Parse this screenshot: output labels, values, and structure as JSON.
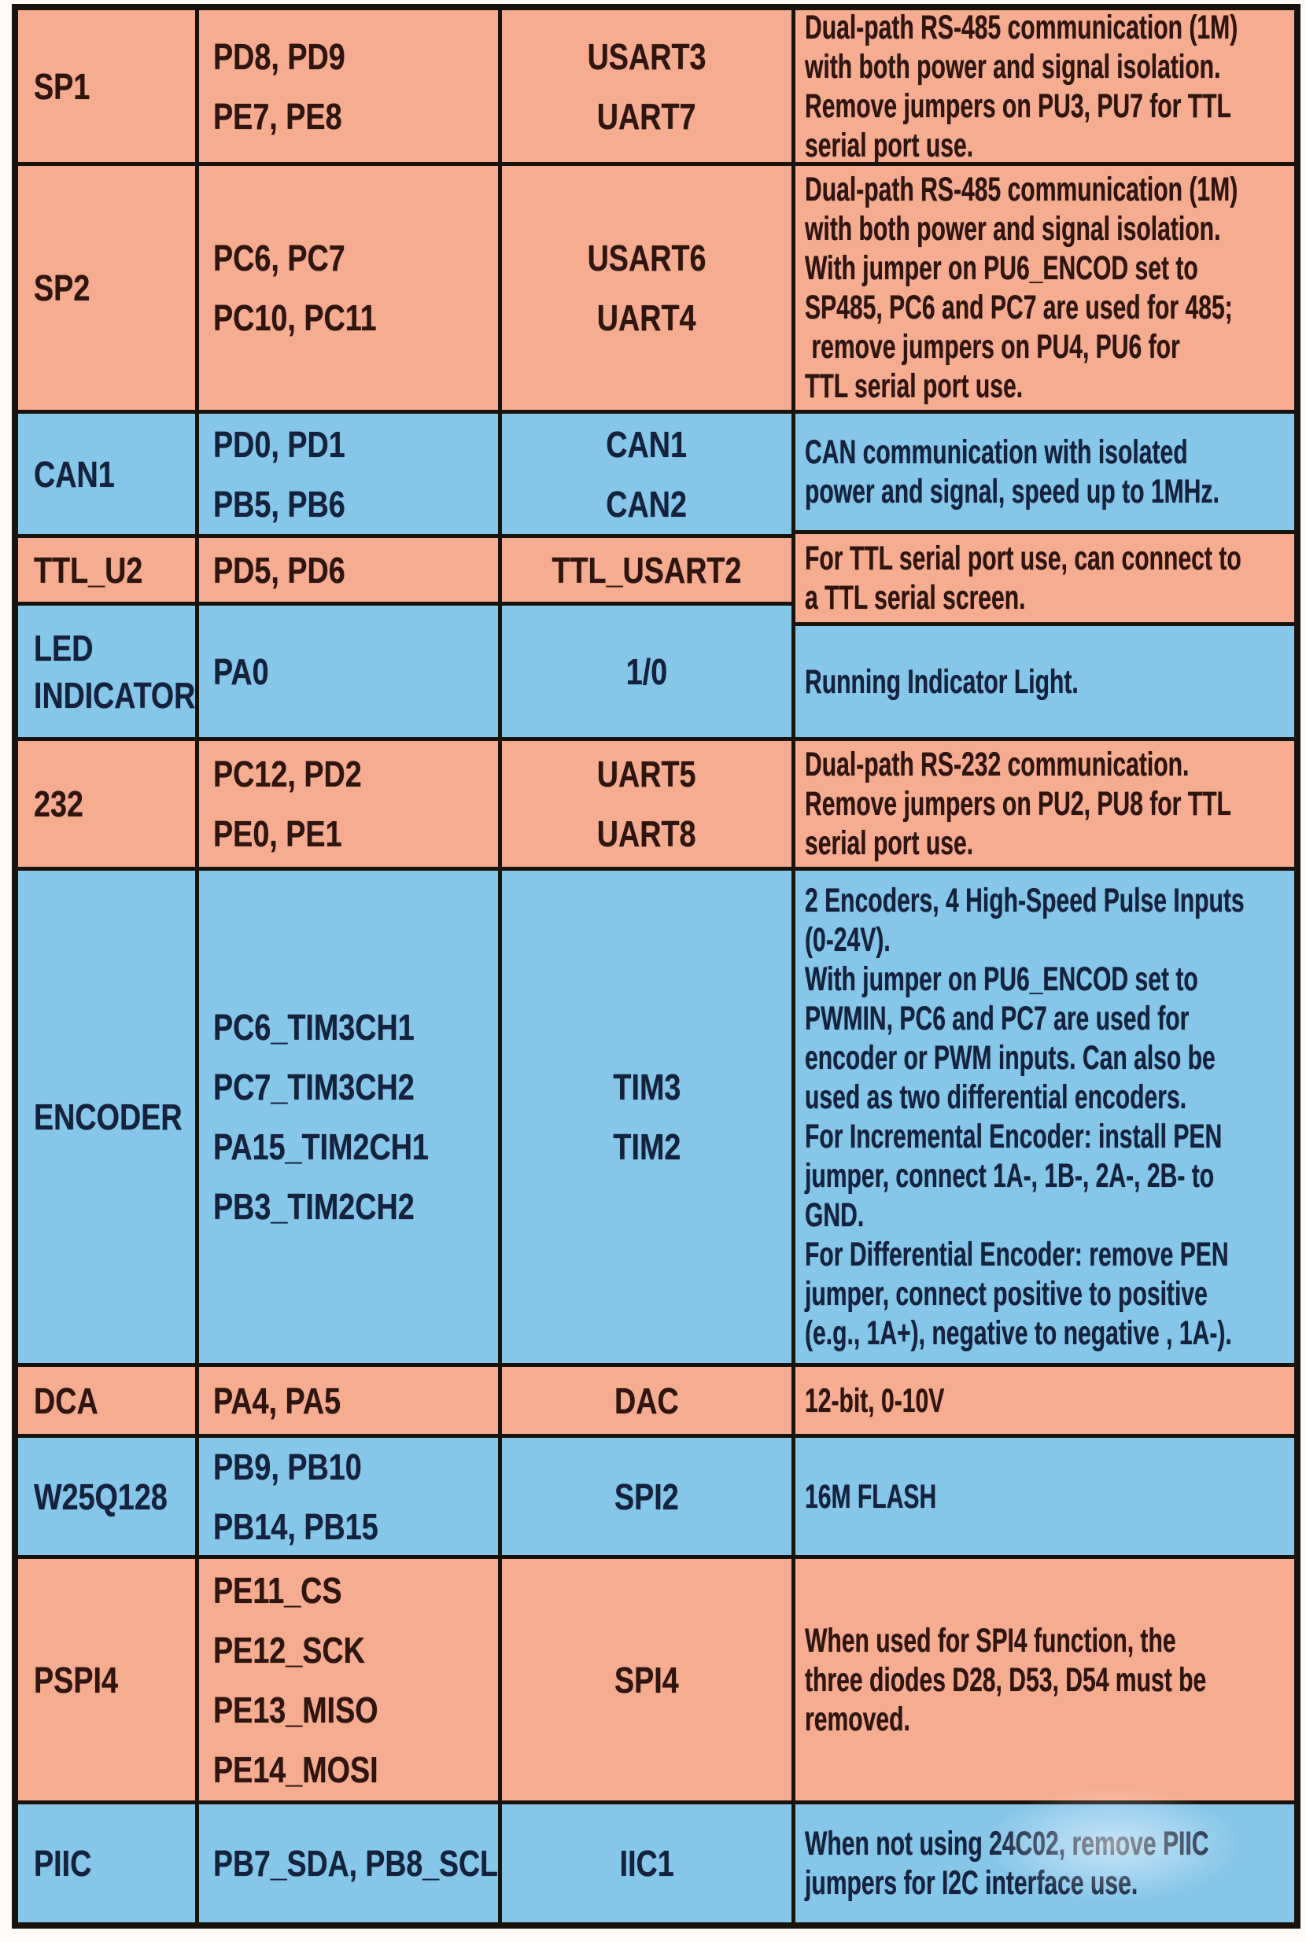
{
  "colors": {
    "salmon_row": "#F6AC90",
    "blue_row": "#86C6E9",
    "grid_line": "#19130D",
    "text_on_salmon": "#2E150F",
    "text_on_blue": "#14223C"
  },
  "table": {
    "rows": [
      {
        "name": "SP1",
        "pins": "PD8, PD9\nPE7, PE8",
        "peripheral": "USART3\nUART7",
        "description": "Dual-path RS-485 communication (1M)\nwith both power and signal isolation.\nRemove jumpers on PU3, PU7 for TTL\nserial port use.",
        "tone": "salmon"
      },
      {
        "name": "SP2",
        "pins": "PC6, PC7\nPC10, PC11",
        "peripheral": "USART6\nUART4",
        "description": "Dual-path RS-485 communication (1M)\nwith both power and signal isolation.\nWith jumper on PU6_ENCOD set to\nSP485, PC6 and PC7 are used for 485;\n remove jumpers on PU4, PU6 for\nTTL serial port use.",
        "tone": "salmon"
      },
      {
        "name": "CAN1",
        "pins": "PD0, PD1\nPB5, PB6",
        "peripheral": "CAN1\nCAN2",
        "description": "CAN communication with isolated\npower and signal, speed up to 1MHz.",
        "tone": "blue"
      },
      {
        "name": "TTL_U2",
        "pins": "PD5, PD6",
        "peripheral": "TTL_USART2",
        "description": "For TTL serial port use, can connect to\na TTL serial screen.",
        "tone": "salmon"
      },
      {
        "name": "LED\nINDICATOR",
        "pins": "PA0",
        "peripheral": "1/0",
        "description": "Running Indicator Light.",
        "tone": "blue"
      },
      {
        "name": "232",
        "pins": "PC12, PD2\nPE0, PE1",
        "peripheral": "UART5\nUART8",
        "description": "Dual-path RS-232 communication.\nRemove jumpers on PU2, PU8 for TTL\nserial port use.",
        "tone": "salmon"
      },
      {
        "name": "ENCODER",
        "pins": "PC6_TIM3CH1\nPC7_TIM3CH2\nPA15_TIM2CH1\nPB3_TIM2CH2",
        "peripheral": "TIM3\nTIM2",
        "description": "2 Encoders, 4 High-Speed Pulse Inputs\n(0-24V).\nWith jumper on PU6_ENCOD set to\nPWMIN, PC6 and PC7 are used for\nencoder or PWM inputs. Can also be\nused as two differential encoders.\nFor Incremental Encoder: install PEN\njumper, connect 1A-, 1B-, 2A-, 2B- to\nGND.\nFor Differential Encoder: remove PEN\njumper, connect positive to positive\n(e.g., 1A+), negative to negative , 1A-).",
        "tone": "blue"
      },
      {
        "name": "DCA",
        "pins": "PA4, PA5",
        "peripheral": "DAC",
        "description": "12-bit, 0-10V",
        "tone": "salmon"
      },
      {
        "name": "W25Q128",
        "pins": "PB9, PB10\nPB14, PB15",
        "peripheral": "SPI2",
        "description": "16M FLASH",
        "tone": "blue"
      },
      {
        "name": "PSPI4",
        "pins": "PE11_CS\nPE12_SCK\nPE13_MISO\nPE14_MOSI",
        "peripheral": "SPI4",
        "description": "When used for SPI4 function, the\nthree diodes D28, D53, D54 must be\nremoved.",
        "tone": "salmon"
      },
      {
        "name": "PIIC",
        "pins": "PB7_SDA, PB8_SCL",
        "peripheral": "IIC1",
        "description": "When not using 24C02, remove PIIC\njumpers for I2C interface use.",
        "tone": "blue"
      }
    ]
  }
}
